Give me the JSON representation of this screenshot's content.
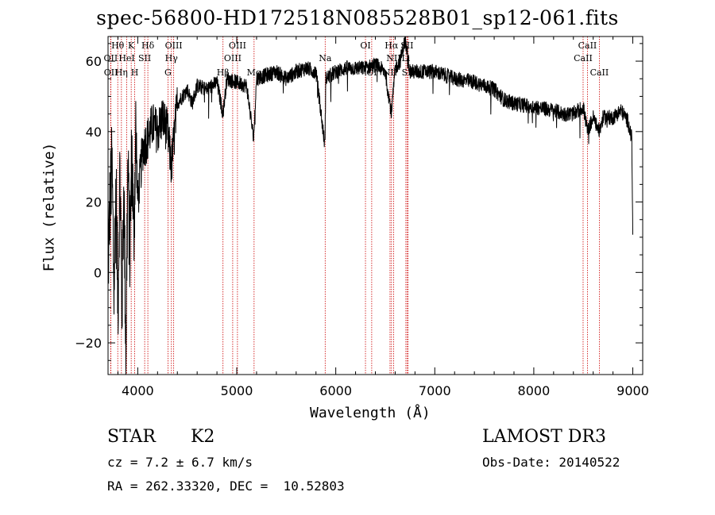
{
  "chart_data": {
    "type": "line",
    "title": "spec-56800-HD172518N085528B01_sp12-061.fits",
    "xlabel": "Wavelength (Å)",
    "ylabel": "Flux (relative)",
    "xlim": [
      3700,
      9100
    ],
    "ylim": [
      -29,
      67
    ],
    "xticks": [
      4000,
      5000,
      6000,
      7000,
      8000,
      9000
    ],
    "yticks": [
      -20,
      0,
      20,
      40,
      60
    ],
    "xtick_labels": [
      "4000",
      "5000",
      "6000",
      "7000",
      "8000",
      "9000"
    ],
    "ytick_labels": [
      "−20",
      "0",
      "20",
      "40",
      "60"
    ],
    "series": [
      {
        "name": "spectrum",
        "anchors": [
          [
            3700,
            0
          ],
          [
            3720,
            20
          ],
          [
            3740,
            30
          ],
          [
            3760,
            -5
          ],
          [
            3780,
            25
          ],
          [
            3800,
            -10
          ],
          [
            3820,
            30
          ],
          [
            3840,
            -12
          ],
          [
            3860,
            25
          ],
          [
            3880,
            -22
          ],
          [
            3900,
            30
          ],
          [
            3920,
            5
          ],
          [
            3940,
            35
          ],
          [
            3960,
            10
          ],
          [
            3980,
            40
          ],
          [
            4000,
            20
          ],
          [
            4050,
            35
          ],
          [
            4100,
            38
          ],
          [
            4150,
            42
          ],
          [
            4200,
            40
          ],
          [
            4250,
            44
          ],
          [
            4300,
            40
          ],
          [
            4340,
            30
          ],
          [
            4400,
            48
          ],
          [
            4450,
            50
          ],
          [
            4500,
            52
          ],
          [
            4550,
            48
          ],
          [
            4600,
            53
          ],
          [
            4700,
            52
          ],
          [
            4800,
            54
          ],
          [
            4861,
            45
          ],
          [
            4900,
            55
          ],
          [
            5000,
            54
          ],
          [
            5100,
            53
          ],
          [
            5170,
            38
          ],
          [
            5200,
            55
          ],
          [
            5300,
            56
          ],
          [
            5400,
            57
          ],
          [
            5500,
            55
          ],
          [
            5600,
            57
          ],
          [
            5700,
            58
          ],
          [
            5800,
            57
          ],
          [
            5890,
            36
          ],
          [
            5900,
            55
          ],
          [
            6000,
            57
          ],
          [
            6100,
            58
          ],
          [
            6200,
            58
          ],
          [
            6300,
            58
          ],
          [
            6400,
            59
          ],
          [
            6500,
            57
          ],
          [
            6563,
            45
          ],
          [
            6600,
            58
          ],
          [
            6650,
            60
          ],
          [
            6700,
            66
          ],
          [
            6750,
            57
          ],
          [
            6800,
            57
          ],
          [
            6900,
            57
          ],
          [
            7000,
            57
          ],
          [
            7200,
            55
          ],
          [
            7400,
            54
          ],
          [
            7600,
            52
          ],
          [
            7700,
            49
          ],
          [
            7800,
            48
          ],
          [
            8000,
            47
          ],
          [
            8200,
            46
          ],
          [
            8300,
            45
          ],
          [
            8400,
            45
          ],
          [
            8500,
            47
          ],
          [
            8542,
            40
          ],
          [
            8600,
            44
          ],
          [
            8662,
            40
          ],
          [
            8700,
            44
          ],
          [
            8800,
            44
          ],
          [
            8880,
            46
          ],
          [
            8950,
            43
          ],
          [
            8990,
            38
          ],
          [
            9000,
            10
          ]
        ]
      }
    ],
    "noise_level": 2.2,
    "blue_noise_level": 14,
    "line_color": "#000000",
    "marker_color": "#cc0000",
    "spectral_lines": [
      {
        "label": "Hθ",
        "wavelength": 3798,
        "row": 1
      },
      {
        "label": "OII",
        "wavelength": 3727,
        "row": 2
      },
      {
        "label": "OII",
        "wavelength": 3729,
        "row": 3
      },
      {
        "label": "Hη",
        "wavelength": 3835,
        "row": 3
      },
      {
        "label": "K",
        "wavelength": 3934,
        "row": 1
      },
      {
        "label": "HeI",
        "wavelength": 3889,
        "row": 2
      },
      {
        "label": "SII",
        "wavelength": 4070,
        "row": 2
      },
      {
        "label": "H",
        "wavelength": 3969,
        "row": 3
      },
      {
        "label": "Hδ",
        "wavelength": 4102,
        "row": 1
      },
      {
        "label": "OIII",
        "wavelength": 4363,
        "row": 1
      },
      {
        "label": "Hγ",
        "wavelength": 4340,
        "row": 2
      },
      {
        "label": "G",
        "wavelength": 4305,
        "row": 3
      },
      {
        "label": "Hβ",
        "wavelength": 4861,
        "row": 3
      },
      {
        "label": "OIII",
        "wavelength": 5007,
        "row": 1
      },
      {
        "label": "OIII",
        "wavelength": 4959,
        "row": 2
      },
      {
        "label": "Mg",
        "wavelength": 5175,
        "row": 3
      },
      {
        "label": "Na",
        "wavelength": 5893,
        "row": 2
      },
      {
        "label": "OI",
        "wavelength": 6300,
        "row": 1
      },
      {
        "label": "OI",
        "wavelength": 6363,
        "row": 3
      },
      {
        "label": "Hα",
        "wavelength": 6563,
        "row": 1
      },
      {
        "label": "SII",
        "wavelength": 6720,
        "row": 1
      },
      {
        "label": "NII",
        "wavelength": 6584,
        "row": 2
      },
      {
        "label": "Li",
        "wavelength": 6708,
        "row": 2
      },
      {
        "label": "NII",
        "wavelength": 6548,
        "row": 3
      },
      {
        "label": "SII",
        "wavelength": 6731,
        "row": 3
      },
      {
        "label": "CaII",
        "wavelength": 8542,
        "row": 1
      },
      {
        "label": "CaII",
        "wavelength": 8498,
        "row": 2
      },
      {
        "label": "CaII",
        "wavelength": 8662,
        "row": 3
      }
    ]
  },
  "info": {
    "object_class": "STAR",
    "subclass": "K2",
    "survey": "LAMOST DR3",
    "cz": "cz = 7.2 ± 6.7 km/s",
    "obs_date": "Obs-Date: 20140522",
    "coords": "RA = 262.33320, DEC =  10.52803"
  }
}
